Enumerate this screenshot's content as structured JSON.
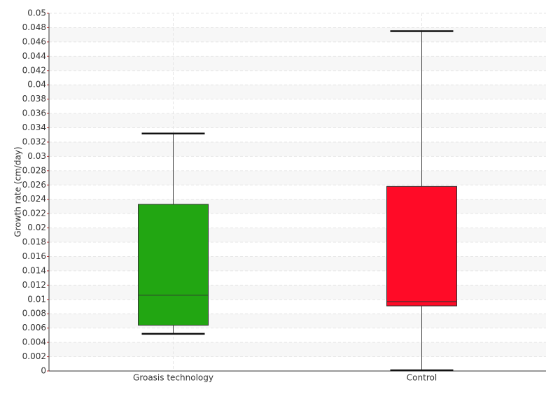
{
  "chart_data": {
    "type": "box",
    "y_label": "Growth rate (cm/day)",
    "categories": [
      "Groasis technology",
      "Control"
    ],
    "boxes": [
      {
        "low": 0.0052,
        "q1": 0.0064,
        "median": 0.0106,
        "q3": 0.0233,
        "high": 0.0332,
        "color": "#22a612"
      },
      {
        "low": 0.0001,
        "q1": 0.0091,
        "median": 0.0097,
        "q3": 0.0258,
        "high": 0.0475,
        "color": "#ff0b27"
      }
    ],
    "ylim": [
      0,
      0.05
    ],
    "yticks": [
      0,
      0.002,
      0.004,
      0.006,
      0.008,
      0.01,
      0.012,
      0.014,
      0.016,
      0.018,
      0.02,
      0.022,
      0.024,
      0.026,
      0.028,
      0.03,
      0.032,
      0.034,
      0.036,
      0.038,
      0.04,
      0.042,
      0.044,
      0.046,
      0.048,
      0.05
    ],
    "grid": true
  }
}
